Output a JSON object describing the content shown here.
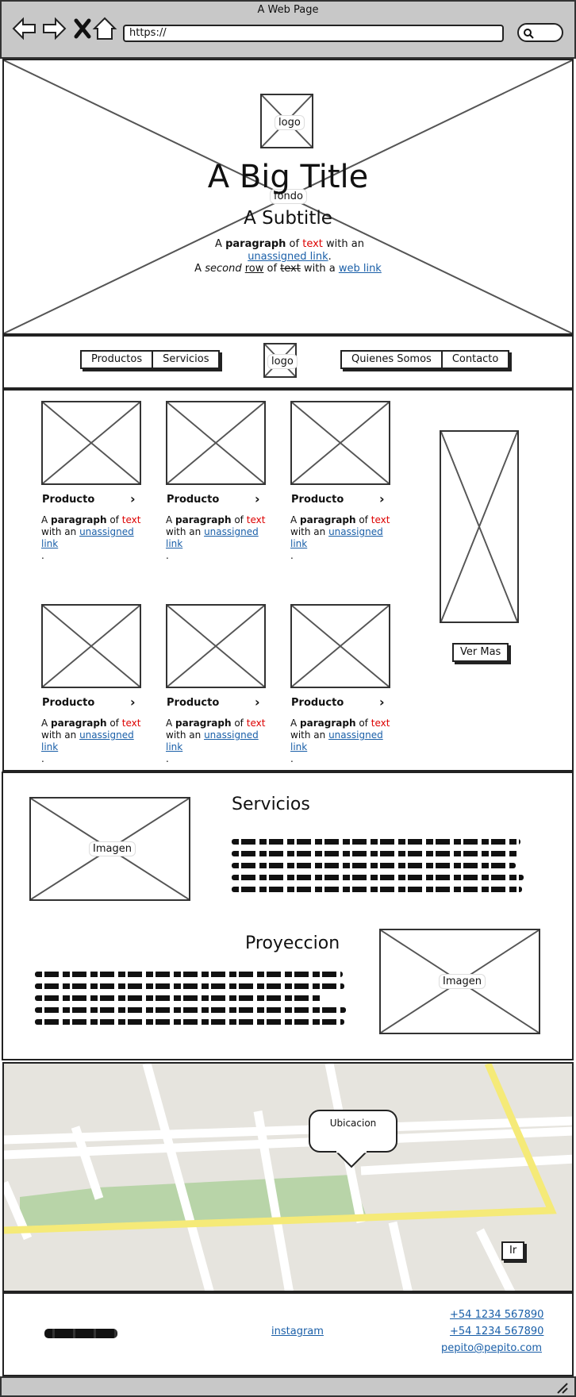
{
  "browser": {
    "window_title": "A Web Page",
    "url": "https://"
  },
  "hero": {
    "logo_label": "logo",
    "background_label": "fondo",
    "title": "A Big Title",
    "subtitle": "A Subtitle",
    "para1": {
      "w1": "A",
      "w2": "paragraph",
      "w3": "of",
      "w4": "text",
      "w5": "with an",
      "link": "unassigned link",
      "end": "."
    },
    "para2": {
      "w1": "A",
      "w2": "second",
      "w3": "row",
      "w4": "of",
      "w5": "text",
      "w6": "with a",
      "link": "web link"
    }
  },
  "nav": {
    "left_buttons": [
      "Productos",
      "Servicios"
    ],
    "logo_label": "logo",
    "right_buttons": [
      "Quienes Somos",
      "Contacto"
    ]
  },
  "products": {
    "items": [
      {
        "title": "Producto",
        "p1": "A",
        "p2": "paragraph",
        "p3": "of",
        "p4": "text",
        "p5": "with an",
        "link": "unassigned link",
        "end": "."
      },
      {
        "title": "Producto",
        "p1": "A",
        "p2": "paragraph",
        "p3": "of",
        "p4": "text",
        "p5": "with an",
        "link": "unassigned link",
        "end": "."
      },
      {
        "title": "Producto",
        "p1": "A",
        "p2": "paragraph",
        "p3": "of",
        "p4": "text",
        "p5": "with an",
        "link": "unassigned link",
        "end": "."
      },
      {
        "title": "Producto",
        "p1": "A",
        "p2": "paragraph",
        "p3": "of",
        "p4": "text",
        "p5": "with an",
        "link": "unassigned link",
        "end": "."
      },
      {
        "title": "Producto",
        "p1": "A",
        "p2": "paragraph",
        "p3": "of",
        "p4": "text",
        "p5": "with an",
        "link": "unassigned link",
        "end": "."
      },
      {
        "title": "Producto",
        "p1": "A",
        "p2": "paragraph",
        "p3": "of",
        "p4": "text",
        "p5": "with an",
        "link": "unassigned link",
        "end": "."
      }
    ],
    "more_button": "Ver Mas"
  },
  "services": {
    "title": "Servicios",
    "image_label": "Imagen"
  },
  "projection": {
    "title": "Proyeccion",
    "image_label": "Imagen"
  },
  "map": {
    "callout": "Ubicacion",
    "go_button": "Ir"
  },
  "footer": {
    "instagram": "instagram",
    "phone1": "+54 1234 567890",
    "phone2": "+54 1234 567890",
    "email": "pepito@pepito.com"
  },
  "colors": {
    "link": "#1a5fa8",
    "highlight_text": "#dd0000",
    "chrome_bg": "#c8c8c8",
    "map_road_yellow": "#f5ea78",
    "map_park": "#b8d4a8"
  }
}
